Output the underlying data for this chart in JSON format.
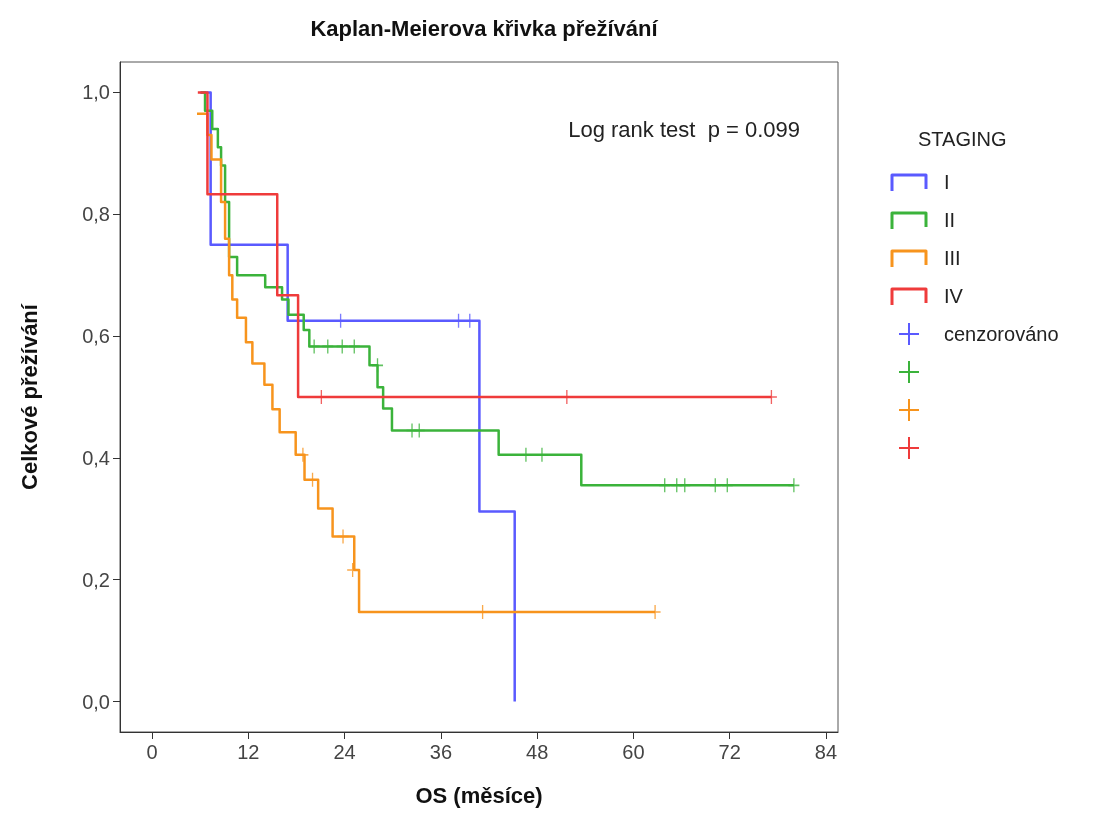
{
  "chart_data": {
    "type": "step",
    "title": "Kaplan-Meierova křivka přežívání",
    "xlabel": "OS (měsíce)",
    "ylabel": "Celkové přežívání",
    "legend_title": "STAGING",
    "legend": "right",
    "grid": false,
    "annotations": [
      "Log rank test  p = 0.099"
    ],
    "xlim": [
      -4,
      85.5
    ],
    "xticks": [
      0,
      12,
      24,
      36,
      48,
      60,
      72,
      84
    ],
    "ylim": [
      -0.05,
      1.05
    ],
    "yticks": [
      {
        "value": 0,
        "label": "0,0"
      },
      {
        "value": 0.2,
        "label": "0,2"
      },
      {
        "value": 0.4,
        "label": "0,4"
      },
      {
        "value": 0.6,
        "label": "0,6"
      },
      {
        "value": 0.8,
        "label": "0,8"
      },
      {
        "value": 1,
        "label": "1,0"
      }
    ],
    "series": [
      {
        "name": "I",
        "color": "#5a5aff",
        "x": [
          6,
          7.3,
          16.9,
          40.8,
          45.2
        ],
        "values": [
          1,
          0.75,
          0.625,
          0.312,
          0
        ]
      },
      {
        "name": "II",
        "color": "#3bb33b",
        "x": [
          6.1,
          6.6,
          7.5,
          8.2,
          8.6,
          9.1,
          9.6,
          10.6,
          14.1,
          16.2,
          17,
          18.9,
          19.6,
          27.1,
          28.1,
          28.8,
          29.9,
          43.2,
          53.5,
          80
        ],
        "values": [
          1,
          0.97,
          0.94,
          0.91,
          0.88,
          0.82,
          0.73,
          0.7,
          0.68,
          0.66,
          0.635,
          0.61,
          0.583,
          0.552,
          0.516,
          0.481,
          0.445,
          0.405,
          0.355,
          0.355
        ]
      },
      {
        "name": "III",
        "color": "#f7941d",
        "x": [
          5.6,
          6.9,
          7.4,
          8.6,
          9.1,
          9.6,
          10,
          10.6,
          11.7,
          12.5,
          14,
          15,
          15.9,
          17.9,
          19,
          20.7,
          22.5,
          25.2,
          25.8,
          62.7
        ],
        "values": [
          0.965,
          0.93,
          0.89,
          0.82,
          0.76,
          0.7,
          0.66,
          0.63,
          0.59,
          0.555,
          0.52,
          0.48,
          0.442,
          0.405,
          0.364,
          0.317,
          0.271,
          0.216,
          0.147,
          0.147
        ]
      },
      {
        "name": "IV",
        "color": "#ef3b3b",
        "x": [
          5.7,
          6.9,
          15.6,
          18.2,
          77.2
        ],
        "values": [
          1,
          0.833,
          0.667,
          0.5,
          0.5
        ]
      },
      {
        "name": "cenzorováno",
        "color": "#5a5aff",
        "type": "scatter",
        "marker": "cross",
        "x": [
          23.5,
          38.2,
          39.6
        ],
        "values": [
          0.625,
          0.625,
          0.625
        ]
      },
      {
        "color": "#3bb33b",
        "type": "scatter",
        "marker": "cross",
        "x": [
          20.2,
          21.9,
          23.7,
          25.2,
          28.1,
          32.4,
          33.3,
          46.6,
          48.6,
          63.9,
          65.4,
          66.4,
          70.2,
          71.7,
          80
        ],
        "values": [
          0.583,
          0.583,
          0.583,
          0.583,
          0.552,
          0.445,
          0.445,
          0.405,
          0.405,
          0.355,
          0.355,
          0.355,
          0.355,
          0.355,
          0.355
        ]
      },
      {
        "color": "#f7941d",
        "type": "scatter",
        "marker": "cross",
        "x": [
          18.8,
          20,
          23.8,
          25,
          41.2,
          62.7
        ],
        "values": [
          0.405,
          0.364,
          0.271,
          0.216,
          0.147,
          0.147
        ]
      },
      {
        "color": "#ef3b3b",
        "type": "scatter",
        "marker": "cross",
        "x": [
          21.1,
          51.7,
          77.2
        ],
        "values": [
          0.5,
          0.5,
          0.5
        ]
      }
    ]
  }
}
